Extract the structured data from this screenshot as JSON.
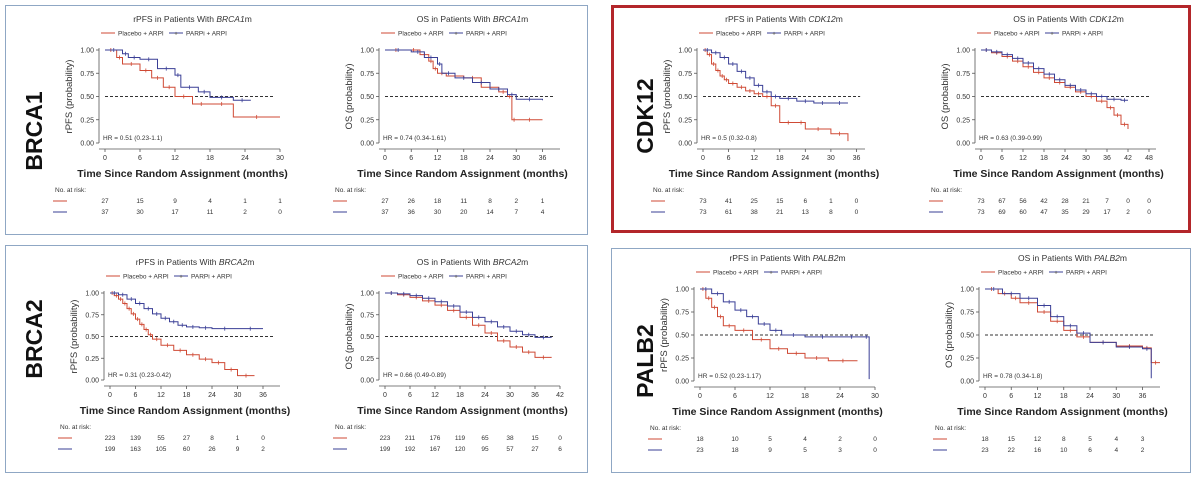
{
  "colors": {
    "placebo": "#cf4a35",
    "parpi": "#3a3f96",
    "border": "#8fa7c4",
    "highlight": "#b3262a"
  },
  "legend": {
    "placebo": "Placebo + ARPI",
    "parpi": "PARPi + ARPI"
  },
  "xlabel": "Time Since Random Assignment (months)",
  "risk_label": "No. at risk:",
  "panels": [
    {
      "gene": "BRCA1",
      "highlight": false,
      "charts": [
        {
          "title_prefix": "rPFS in Patients With ",
          "title_gene": "BRCA1",
          "title_suffix": "m",
          "ylabel": "rPFS (probability)",
          "xticks": [
            0,
            6,
            12,
            18,
            24,
            30
          ],
          "xmax": 30,
          "hr": "HR = 0.51 (0.23-1.1)",
          "risk": {
            "placebo": [
              27,
              15,
              9,
              4,
              1,
              1
            ],
            "parpi": [
              37,
              30,
              17,
              11,
              2,
              0
            ]
          }
        },
        {
          "title_prefix": "OS in Patients With ",
          "title_gene": "BRCA1",
          "title_suffix": "m",
          "ylabel": "OS (probability)",
          "xticks": [
            0,
            6,
            12,
            18,
            24,
            30,
            36
          ],
          "xmax": 40,
          "hr": "HR = 0.74 (0.34-1.61)",
          "risk": {
            "placebo": [
              27,
              26,
              18,
              11,
              8,
              2,
              1
            ],
            "parpi": [
              37,
              36,
              30,
              20,
              14,
              7,
              4
            ]
          }
        }
      ]
    },
    {
      "gene": "CDK12",
      "highlight": true,
      "charts": [
        {
          "title_prefix": "rPFS in Patients With ",
          "title_gene": "CDK12",
          "title_suffix": "m",
          "ylabel": "rPFS (probability)",
          "xticks": [
            0,
            6,
            12,
            18,
            24,
            30,
            36
          ],
          "xmax": 38,
          "hr": "HR = 0.5 (0.32-0.8)",
          "risk": {
            "placebo": [
              73,
              41,
              25,
              15,
              6,
              1,
              0
            ],
            "parpi": [
              73,
              61,
              38,
              21,
              13,
              8,
              0
            ]
          }
        },
        {
          "title_prefix": "OS in Patients With ",
          "title_gene": "CDK12",
          "title_suffix": "m",
          "ylabel": "OS (probability)",
          "xticks": [
            0,
            6,
            12,
            18,
            24,
            30,
            36,
            42,
            48
          ],
          "xmax": 50,
          "hr": "HR = 0.63 (0.39-0.99)",
          "risk": {
            "placebo": [
              73,
              67,
              56,
              42,
              28,
              21,
              7,
              0,
              0
            ],
            "parpi": [
              73,
              69,
              60,
              47,
              35,
              29,
              17,
              2,
              0
            ]
          }
        }
      ]
    },
    {
      "gene": "BRCA2",
      "highlight": false,
      "charts": [
        {
          "title_prefix": "rPFS in Patients With ",
          "title_gene": "BRCA2",
          "title_suffix": "m",
          "ylabel": "rPFS (probability)",
          "xticks": [
            0,
            6,
            12,
            18,
            24,
            30,
            36
          ],
          "xmax": 40,
          "hr": "HR = 0.31 (0.23-0.42)",
          "risk": {
            "placebo": [
              223,
              139,
              55,
              27,
              8,
              1,
              0
            ],
            "parpi": [
              199,
              163,
              105,
              60,
              26,
              9,
              2
            ]
          }
        },
        {
          "title_prefix": "OS in Patients With ",
          "title_gene": "BRCA2",
          "title_suffix": "m",
          "ylabel": "OS (probability)",
          "xticks": [
            0,
            6,
            12,
            18,
            24,
            30,
            36,
            42
          ],
          "xmax": 42,
          "hr": "HR = 0.66 (0.49-0.89)",
          "risk": {
            "placebo": [
              223,
              211,
              176,
              119,
              65,
              38,
              15,
              0
            ],
            "parpi": [
              199,
              192,
              167,
              120,
              95,
              57,
              27,
              6
            ]
          }
        }
      ]
    },
    {
      "gene": "PALB2",
      "highlight": false,
      "charts": [
        {
          "title_prefix": "rPFS in Patients With ",
          "title_gene": "PALB2",
          "title_suffix": "m",
          "ylabel": "rPFS (probability)",
          "xticks": [
            0,
            6,
            12,
            18,
            24,
            30
          ],
          "xmax": 30,
          "hr": "HR = 0.52 (0.23-1.17)",
          "risk": {
            "placebo": [
              18,
              10,
              5,
              4,
              2,
              0
            ],
            "parpi": [
              23,
              18,
              9,
              5,
              3,
              0
            ]
          }
        },
        {
          "title_prefix": "OS in Patients With ",
          "title_gene": "PALB2",
          "title_suffix": "m",
          "ylabel": "OS (probability)",
          "xticks": [
            0,
            6,
            12,
            18,
            24,
            30,
            36
          ],
          "xmax": 40,
          "hr": "HR = 0.78 (0.34-1.8)",
          "risk": {
            "placebo": [
              18,
              15,
              12,
              8,
              5,
              4,
              3
            ],
            "parpi": [
              23,
              22,
              16,
              10,
              6,
              4,
              2
            ]
          }
        }
      ]
    }
  ],
  "chart_data": [
    {
      "type": "line",
      "title": "rPFS in Patients With BRCA1m",
      "ylabel": "rPFS (probability)",
      "xlabel": "Time Since Random Assignment (months)",
      "xlim": [
        0,
        30
      ],
      "ylim": [
        0,
        1
      ],
      "series": [
        {
          "name": "Placebo + ARPI",
          "x": [
            0,
            2,
            3,
            6,
            8,
            10,
            12,
            15,
            18,
            22,
            30
          ],
          "y": [
            1,
            0.92,
            0.85,
            0.78,
            0.7,
            0.6,
            0.5,
            0.42,
            0.42,
            0.28,
            0.28
          ]
        },
        {
          "name": "PARPi + ARPI",
          "x": [
            0,
            3,
            4,
            6,
            9,
            12,
            13,
            16,
            18,
            22,
            25
          ],
          "y": [
            1,
            0.96,
            0.92,
            0.9,
            0.8,
            0.73,
            0.6,
            0.55,
            0.49,
            0.46,
            0.46
          ]
        }
      ]
    },
    {
      "type": "line",
      "title": "OS in Patients With BRCA1m",
      "ylabel": "OS (probability)",
      "xlabel": "Time Since Random Assignment (months)",
      "xlim": [
        0,
        40
      ],
      "ylim": [
        0,
        1
      ],
      "series": [
        {
          "name": "Placebo + ARPI",
          "x": [
            0,
            5,
            8,
            10,
            11,
            12,
            14,
            18,
            22,
            26,
            28,
            29,
            30,
            36
          ],
          "y": [
            1,
            1,
            0.95,
            0.88,
            0.8,
            0.75,
            0.72,
            0.7,
            0.6,
            0.55,
            0.5,
            0.25,
            0.25,
            0.25
          ]
        },
        {
          "name": "PARPi + ARPI",
          "x": [
            0,
            6,
            9,
            12,
            13,
            16,
            20,
            24,
            28,
            30,
            36
          ],
          "y": [
            1,
            0.98,
            0.92,
            0.85,
            0.75,
            0.7,
            0.65,
            0.58,
            0.52,
            0.47,
            0.46
          ]
        }
      ]
    },
    {
      "type": "line",
      "title": "rPFS in Patients With CDK12m",
      "ylabel": "rPFS (probability)",
      "xlabel": "Time Since Random Assignment (months)",
      "xlim": [
        0,
        38
      ],
      "ylim": [
        0,
        1
      ],
      "series": [
        {
          "name": "Placebo + ARPI",
          "x": [
            0,
            1,
            2,
            3,
            4,
            5,
            6,
            8,
            10,
            12,
            14,
            16,
            18,
            22,
            24,
            30,
            34
          ],
          "y": [
            1,
            0.95,
            0.85,
            0.78,
            0.72,
            0.68,
            0.64,
            0.6,
            0.56,
            0.53,
            0.5,
            0.4,
            0.22,
            0.22,
            0.15,
            0.1,
            0.02
          ]
        },
        {
          "name": "PARPi + ARPI",
          "x": [
            0,
            2,
            4,
            6,
            8,
            10,
            12,
            14,
            16,
            18,
            22,
            26,
            30,
            34
          ],
          "y": [
            1,
            0.97,
            0.92,
            0.85,
            0.77,
            0.7,
            0.62,
            0.55,
            0.5,
            0.48,
            0.45,
            0.43,
            0.43,
            0.43
          ]
        }
      ]
    },
    {
      "type": "line",
      "title": "OS in Patients With CDK12m",
      "ylabel": "OS (probability)",
      "xlabel": "Time Since Random Assignment (months)",
      "xlim": [
        0,
        50
      ],
      "ylim": [
        0,
        1
      ],
      "series": [
        {
          "name": "Placebo + ARPI",
          "x": [
            0,
            3,
            6,
            9,
            12,
            15,
            18,
            21,
            24,
            27,
            30,
            33,
            36,
            38,
            40,
            42
          ],
          "y": [
            1,
            0.97,
            0.93,
            0.88,
            0.82,
            0.76,
            0.7,
            0.65,
            0.6,
            0.55,
            0.5,
            0.45,
            0.38,
            0.3,
            0.2,
            0.15
          ]
        },
        {
          "name": "PARPi + ARPI",
          "x": [
            0,
            3,
            6,
            9,
            12,
            15,
            18,
            21,
            24,
            27,
            30,
            33,
            36,
            40,
            42
          ],
          "y": [
            1,
            0.98,
            0.95,
            0.91,
            0.86,
            0.8,
            0.74,
            0.68,
            0.62,
            0.57,
            0.53,
            0.5,
            0.47,
            0.46,
            0.46
          ]
        }
      ]
    },
    {
      "type": "line",
      "title": "rPFS in Patients With BRCA2m",
      "ylabel": "rPFS (probability)",
      "xlabel": "Time Since Random Assignment (months)",
      "xlim": [
        0,
        40
      ],
      "ylim": [
        0,
        1
      ],
      "series": [
        {
          "name": "Placebo + ARPI",
          "x": [
            0,
            1,
            2,
            3,
            4,
            5,
            6,
            7,
            8,
            9,
            10,
            12,
            15,
            18,
            21,
            24,
            27,
            30,
            34
          ],
          "y": [
            1,
            0.97,
            0.93,
            0.88,
            0.82,
            0.76,
            0.7,
            0.64,
            0.58,
            0.52,
            0.47,
            0.4,
            0.34,
            0.29,
            0.24,
            0.2,
            0.12,
            0.05,
            0.05
          ]
        },
        {
          "name": "PARPi + ARPI",
          "x": [
            0,
            2,
            4,
            6,
            8,
            10,
            12,
            14,
            16,
            18,
            21,
            24,
            30,
            36
          ],
          "y": [
            1,
            0.98,
            0.93,
            0.88,
            0.82,
            0.76,
            0.71,
            0.67,
            0.63,
            0.61,
            0.6,
            0.59,
            0.59,
            0.59
          ]
        }
      ]
    },
    {
      "type": "line",
      "title": "OS in Patients With BRCA2m",
      "ylabel": "OS (probability)",
      "xlabel": "Time Since Random Assignment (months)",
      "xlim": [
        0,
        42
      ],
      "ylim": [
        0,
        1
      ],
      "series": [
        {
          "name": "Placebo + ARPI",
          "x": [
            0,
            3,
            6,
            9,
            12,
            15,
            18,
            21,
            24,
            27,
            30,
            33,
            36,
            40
          ],
          "y": [
            1,
            0.98,
            0.95,
            0.91,
            0.86,
            0.8,
            0.72,
            0.63,
            0.54,
            0.45,
            0.38,
            0.32,
            0.26,
            0.26
          ]
        },
        {
          "name": "PARPi + ARPI",
          "x": [
            0,
            3,
            6,
            9,
            12,
            15,
            18,
            21,
            24,
            27,
            30,
            33,
            36,
            40
          ],
          "y": [
            1,
            0.99,
            0.97,
            0.94,
            0.9,
            0.85,
            0.78,
            0.72,
            0.67,
            0.61,
            0.56,
            0.52,
            0.49,
            0.49
          ]
        }
      ]
    },
    {
      "type": "line",
      "title": "rPFS in Patients With PALB2m",
      "ylabel": "rPFS (probability)",
      "xlabel": "Time Since Random Assignment (months)",
      "xlim": [
        0,
        30
      ],
      "ylim": [
        0,
        1
      ],
      "series": [
        {
          "name": "Placebo + ARPI",
          "x": [
            0,
            1,
            2,
            3,
            4,
            6,
            9,
            12,
            15,
            18,
            22,
            27
          ],
          "y": [
            1,
            0.9,
            0.8,
            0.7,
            0.6,
            0.55,
            0.45,
            0.35,
            0.3,
            0.25,
            0.22,
            0.22
          ]
        },
        {
          "name": "PARPi + ARPI",
          "x": [
            0,
            2,
            4,
            6,
            8,
            10,
            12,
            14,
            18,
            24,
            28,
            29
          ],
          "y": [
            1,
            0.95,
            0.86,
            0.77,
            0.7,
            0.62,
            0.55,
            0.5,
            0.48,
            0.48,
            0.48,
            0.02
          ]
        }
      ]
    },
    {
      "type": "line",
      "title": "OS in Patients With PALB2m",
      "ylabel": "OS (probability)",
      "xlabel": "Time Since Random Assignment (months)",
      "xlim": [
        0,
        40
      ],
      "ylim": [
        0,
        1
      ],
      "series": [
        {
          "name": "Placebo + ARPI",
          "x": [
            0,
            3,
            6,
            8,
            12,
            15,
            18,
            21,
            24,
            30,
            36,
            38,
            40
          ],
          "y": [
            1,
            0.95,
            0.9,
            0.85,
            0.75,
            0.65,
            0.55,
            0.48,
            0.42,
            0.38,
            0.36,
            0.2,
            0.2
          ]
        },
        {
          "name": "PARPi + ARPI",
          "x": [
            0,
            4,
            8,
            12,
            15,
            18,
            21,
            24,
            30,
            36,
            38
          ],
          "y": [
            1,
            0.95,
            0.9,
            0.82,
            0.7,
            0.6,
            0.52,
            0.42,
            0.37,
            0.35,
            0.03
          ]
        }
      ]
    }
  ]
}
